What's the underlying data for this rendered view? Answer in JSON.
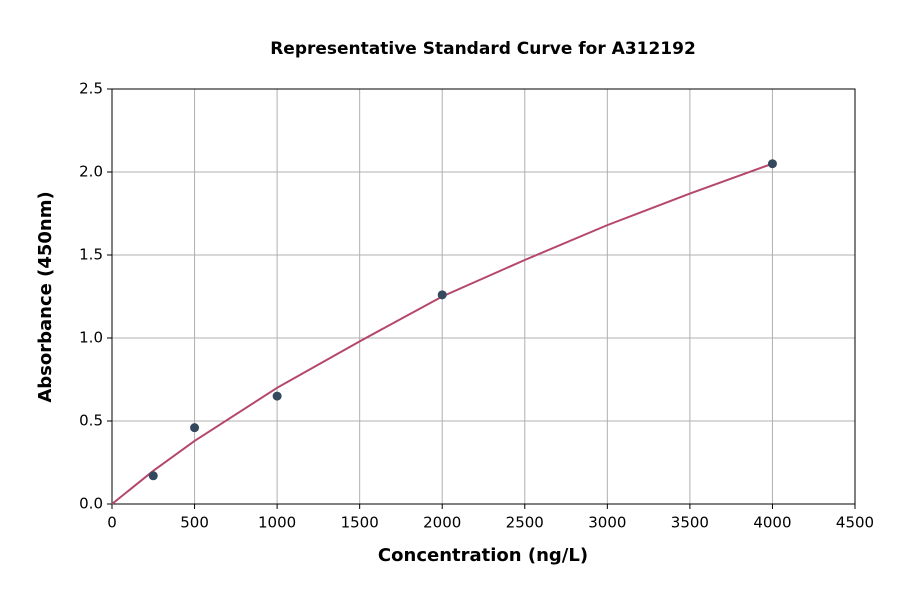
{
  "chart_data": {
    "type": "scatter",
    "title": "Representative Standard Curve for A312192",
    "xlabel": "Concentration (ng/L)",
    "ylabel": "Absorbance (450nm)",
    "xlim": [
      0,
      4500
    ],
    "ylim": [
      0,
      2.5
    ],
    "xticks": [
      0,
      500,
      1000,
      1500,
      2000,
      2500,
      3000,
      3500,
      4000,
      4500
    ],
    "yticks": [
      {
        "value": 0,
        "label": "0.0"
      },
      {
        "value": 0.5,
        "label": "0.5"
      },
      {
        "value": 1,
        "label": "1.0"
      },
      {
        "value": 1.5,
        "label": "1.5"
      },
      {
        "value": 2,
        "label": "2.0"
      },
      {
        "value": 2.5,
        "label": "2.5"
      }
    ],
    "grid": true,
    "series": [
      {
        "type": "scatter",
        "color": "#34495e",
        "x": [
          250,
          500,
          1000,
          2000,
          4000
        ],
        "values": [
          0.17,
          0.46,
          0.65,
          1.26,
          2.05
        ]
      },
      {
        "type": "line",
        "color": "#b5476b",
        "x": [
          0,
          250,
          500,
          1000,
          1500,
          2000,
          2500,
          3000,
          3500,
          4000
        ],
        "values": [
          0.0,
          0.2,
          0.38,
          0.7,
          0.98,
          1.25,
          1.47,
          1.68,
          1.87,
          2.05
        ]
      }
    ]
  }
}
